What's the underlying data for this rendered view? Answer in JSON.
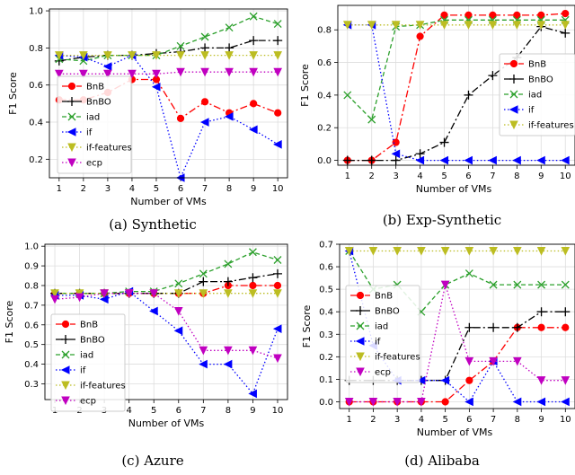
{
  "colors": {
    "BnB": "#ff0000",
    "BnBO": "#000000",
    "iad": "#2ca02c",
    "if": "#0000ff",
    "if-features": "#bcbd22",
    "ecp": "#c000c0",
    "grid": "#dddddd"
  },
  "chart_data": [
    {
      "type": "line",
      "caption": "(a) Synthetic",
      "xlabel": "Number of VMs",
      "ylabel": "F1 Score",
      "x": [
        1,
        2,
        3,
        4,
        5,
        6,
        7,
        8,
        9,
        10
      ],
      "xlim": [
        0.6,
        10.4
      ],
      "ylim": [
        0.1,
        1.01
      ],
      "yticks": [
        "0.2",
        "0.4",
        "0.6",
        "0.8",
        "1.0"
      ],
      "grid": true,
      "legend": "lower-left",
      "series": [
        {
          "name": "BnB",
          "values": [
            0.52,
            0.52,
            0.56,
            0.63,
            0.63,
            0.42,
            0.51,
            0.45,
            0.5,
            0.45
          ]
        },
        {
          "name": "BnBO",
          "values": [
            0.73,
            0.75,
            0.76,
            0.76,
            0.77,
            0.78,
            0.8,
            0.8,
            0.84,
            0.84
          ]
        },
        {
          "name": "iad",
          "values": [
            0.74,
            0.73,
            0.76,
            0.76,
            0.76,
            0.81,
            0.86,
            0.91,
            0.97,
            0.93
          ]
        },
        {
          "name": "if",
          "values": [
            0.76,
            0.75,
            0.7,
            0.76,
            0.59,
            0.1,
            0.4,
            0.43,
            0.36,
            0.28
          ]
        },
        {
          "name": "if-features",
          "values": [
            0.76,
            0.76,
            0.76,
            0.76,
            0.76,
            0.76,
            0.76,
            0.76,
            0.76,
            0.76
          ]
        },
        {
          "name": "ecp",
          "values": [
            0.66,
            0.66,
            0.66,
            0.66,
            0.66,
            0.67,
            0.67,
            0.67,
            0.67,
            0.67
          ]
        }
      ]
    },
    {
      "type": "line",
      "caption": "(b) Exp-Synthetic",
      "xlabel": "Number of VMs",
      "ylabel": "F1 Score",
      "x": [
        1,
        2,
        3,
        4,
        5,
        6,
        7,
        8,
        9,
        10
      ],
      "xlim": [
        0.6,
        10.4
      ],
      "ylim": [
        -0.03,
        0.95
      ],
      "yticks": [
        "0.0",
        "0.2",
        "0.4",
        "0.6",
        "0.8"
      ],
      "grid": true,
      "legend": "right",
      "series": [
        {
          "name": "BnB",
          "values": [
            0.0,
            0.0,
            0.11,
            0.76,
            0.89,
            0.89,
            0.89,
            0.89,
            0.89,
            0.9
          ]
        },
        {
          "name": "BnBO",
          "values": [
            0.0,
            0.0,
            0.0,
            0.04,
            0.11,
            0.4,
            0.52,
            0.63,
            0.82,
            0.78
          ]
        },
        {
          "name": "iad",
          "values": [
            0.4,
            0.25,
            0.82,
            0.83,
            0.86,
            0.86,
            0.86,
            0.86,
            0.86,
            0.86
          ]
        },
        {
          "name": "if",
          "values": [
            0.83,
            0.83,
            0.04,
            0.0,
            0.0,
            0.0,
            0.0,
            0.0,
            0.0,
            0.0
          ]
        },
        {
          "name": "if-features",
          "values": [
            0.83,
            0.83,
            0.83,
            0.83,
            0.83,
            0.83,
            0.83,
            0.83,
            0.83,
            0.83
          ]
        }
      ]
    },
    {
      "type": "line",
      "caption": "(c) Azure",
      "xlabel": "Number of VMs",
      "ylabel": "F1 Score",
      "x": [
        1,
        2,
        3,
        4,
        5,
        6,
        7,
        8,
        9,
        10
      ],
      "xlim": [
        0.6,
        10.4
      ],
      "ylim": [
        0.22,
        1.01
      ],
      "yticks": [
        "0.3",
        "0.4",
        "0.5",
        "0.6",
        "0.7",
        "0.8",
        "0.9",
        "1.0"
      ],
      "grid": true,
      "legend": "lower-left",
      "series": [
        {
          "name": "BnB",
          "values": [
            0.76,
            0.76,
            0.76,
            0.76,
            0.76,
            0.76,
            0.76,
            0.8,
            0.8,
            0.8
          ]
        },
        {
          "name": "BnBO",
          "values": [
            0.76,
            0.76,
            0.76,
            0.76,
            0.76,
            0.76,
            0.82,
            0.82,
            0.84,
            0.86
          ]
        },
        {
          "name": "iad",
          "values": [
            0.76,
            0.76,
            0.76,
            0.77,
            0.77,
            0.81,
            0.86,
            0.91,
            0.97,
            0.93
          ]
        },
        {
          "name": "if",
          "values": [
            0.75,
            0.75,
            0.73,
            0.77,
            0.67,
            0.57,
            0.4,
            0.4,
            0.25,
            0.58
          ]
        },
        {
          "name": "if-features",
          "values": [
            0.76,
            0.76,
            0.76,
            0.76,
            0.76,
            0.76,
            0.76,
            0.76,
            0.76,
            0.76
          ]
        },
        {
          "name": "ecp",
          "values": [
            0.73,
            0.74,
            0.76,
            0.76,
            0.76,
            0.67,
            0.47,
            0.47,
            0.47,
            0.43
          ]
        }
      ]
    },
    {
      "type": "line",
      "caption": "(d) Alibaba",
      "xlabel": "Number of VMs",
      "ylabel": "F1 Score",
      "x": [
        1,
        2,
        3,
        4,
        5,
        6,
        7,
        8,
        9,
        10
      ],
      "xlim": [
        0.6,
        10.4
      ],
      "ylim": [
        -0.03,
        0.7
      ],
      "yticks": [
        "0.0",
        "0.1",
        "0.2",
        "0.3",
        "0.4",
        "0.5",
        "0.6",
        "0.7"
      ],
      "grid": true,
      "legend": "left",
      "series": [
        {
          "name": "BnB",
          "values": [
            0.0,
            0.0,
            0.0,
            0.0,
            0.0,
            0.095,
            0.18,
            0.33,
            0.33,
            0.33
          ]
        },
        {
          "name": "BnBO",
          "values": [
            0.095,
            0.095,
            0.095,
            0.095,
            0.095,
            0.33,
            0.33,
            0.33,
            0.4,
            0.4
          ]
        },
        {
          "name": "iad",
          "values": [
            0.67,
            0.5,
            0.52,
            0.4,
            0.52,
            0.57,
            0.52,
            0.52,
            0.52,
            0.52
          ]
        },
        {
          "name": "if",
          "values": [
            0.67,
            0.25,
            0.095,
            0.095,
            0.095,
            0.0,
            0.18,
            0.0,
            0.0,
            0.0
          ]
        },
        {
          "name": "if-features",
          "values": [
            0.67,
            0.67,
            0.67,
            0.67,
            0.67,
            0.67,
            0.67,
            0.67,
            0.67,
            0.67
          ]
        },
        {
          "name": "ecp",
          "values": [
            0.0,
            0.0,
            0.0,
            0.0,
            0.52,
            0.18,
            0.18,
            0.18,
            0.095,
            0.095
          ]
        }
      ]
    }
  ]
}
